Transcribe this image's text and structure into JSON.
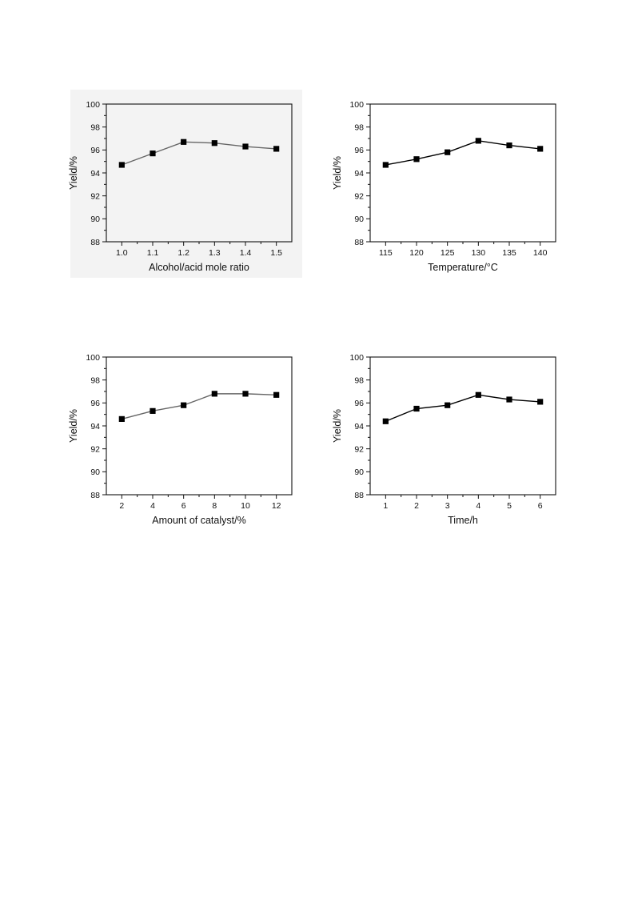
{
  "chart_data": [
    {
      "type": "line",
      "xlabel": "Alcohol/acid mole ratio",
      "ylabel": "Yield/%",
      "x": [
        1.0,
        1.1,
        1.2,
        1.3,
        1.4,
        1.5
      ],
      "xticks": [
        "1.0",
        "1.1",
        "1.2",
        "1.3",
        "1.4",
        "1.5"
      ],
      "xlim": [
        0.95,
        1.55
      ],
      "ylim": [
        88,
        100
      ],
      "yticks": [
        "88",
        "90",
        "92",
        "94",
        "96",
        "98",
        "100"
      ],
      "series": [
        {
          "values": [
            94.7,
            95.7,
            96.7,
            96.6,
            96.3,
            96.1
          ]
        }
      ],
      "line_color": "#666666",
      "marker_color": "#000000"
    },
    {
      "type": "line",
      "xlabel": "Temperature/°C",
      "ylabel": "Yield/%",
      "x": [
        115,
        120,
        125,
        130,
        135,
        140
      ],
      "xticks": [
        "115",
        "120",
        "125",
        "130",
        "135",
        "140"
      ],
      "xlim": [
        112.5,
        142.5
      ],
      "ylim": [
        88,
        100
      ],
      "yticks": [
        "88",
        "90",
        "92",
        "94",
        "96",
        "98",
        "100"
      ],
      "series": [
        {
          "values": [
            94.7,
            95.2,
            95.8,
            96.8,
            96.4,
            96.1
          ]
        }
      ],
      "line_color": "#000000",
      "marker_color": "#000000"
    },
    {
      "type": "line",
      "xlabel": "Amount of catalyst/%",
      "ylabel": "Yield/%",
      "x": [
        2,
        4,
        6,
        8,
        10,
        12
      ],
      "xticks": [
        "2",
        "4",
        "6",
        "8",
        "10",
        "12"
      ],
      "xlim": [
        1,
        13
      ],
      "ylim": [
        88,
        100
      ],
      "yticks": [
        "88",
        "90",
        "92",
        "94",
        "96",
        "98",
        "100"
      ],
      "series": [
        {
          "values": [
            94.6,
            95.3,
            95.8,
            96.8,
            96.8,
            96.7
          ]
        }
      ],
      "line_color": "#666666",
      "marker_color": "#000000"
    },
    {
      "type": "line",
      "xlabel": "Time/h",
      "ylabel": "Yield/%",
      "x": [
        1,
        2,
        3,
        4,
        5,
        6
      ],
      "xticks": [
        "1",
        "2",
        "3",
        "4",
        "5",
        "6"
      ],
      "xlim": [
        0.5,
        6.5
      ],
      "ylim": [
        88,
        100
      ],
      "yticks": [
        "88",
        "90",
        "92",
        "94",
        "96",
        "98",
        "100"
      ],
      "series": [
        {
          "values": [
            94.4,
            95.5,
            95.8,
            96.7,
            96.3,
            96.1
          ]
        }
      ],
      "line_color": "#000000",
      "marker_color": "#000000"
    }
  ]
}
